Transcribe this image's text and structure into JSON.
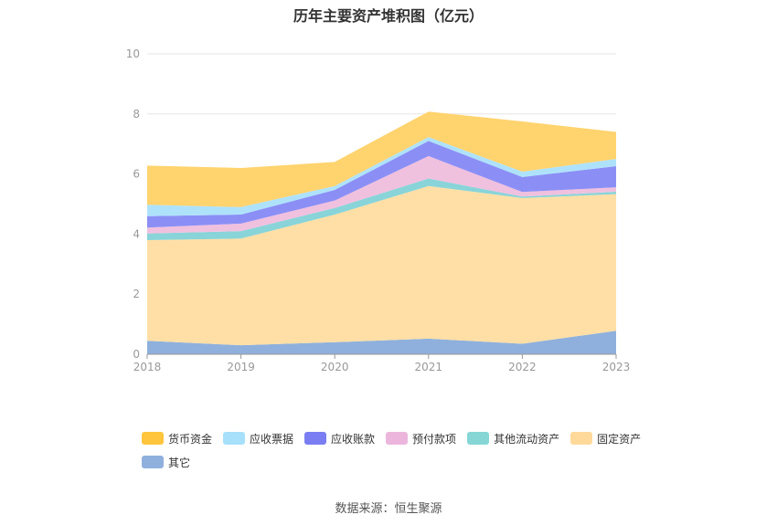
{
  "chart_data": {
    "type": "area",
    "title": "历年主要资产堆积图（亿元）",
    "categories": [
      "2018",
      "2019",
      "2020",
      "2021",
      "2022",
      "2023"
    ],
    "ylim": [
      0,
      10
    ],
    "yticks": [
      "0",
      "2",
      "4",
      "6",
      "8",
      "10"
    ],
    "series": [
      {
        "name": "其它",
        "color": "#8fb0dc",
        "values": [
          0.45,
          0.3,
          0.4,
          0.52,
          0.35,
          0.78
        ]
      },
      {
        "name": "固定资产",
        "color": "#ffdfa6",
        "values": [
          3.35,
          3.55,
          4.25,
          5.08,
          4.85,
          4.55
        ]
      },
      {
        "name": "其他流动资产",
        "color": "#89d4d8",
        "values": [
          0.22,
          0.25,
          0.22,
          0.25,
          0.05,
          0.08
        ]
      },
      {
        "name": "预付款项",
        "color": "#f0c0df",
        "values": [
          0.2,
          0.25,
          0.25,
          0.75,
          0.15,
          0.15
        ]
      },
      {
        "name": "应收账款",
        "color": "#8b8ff5",
        "values": [
          0.38,
          0.3,
          0.35,
          0.5,
          0.5,
          0.7
        ]
      },
      {
        "name": "应收票据",
        "color": "#aee2fb",
        "values": [
          0.38,
          0.25,
          0.13,
          0.13,
          0.18,
          0.24
        ]
      },
      {
        "name": "货币资金",
        "color": "#ffd36e",
        "values": [
          1.3,
          1.3,
          0.8,
          0.85,
          1.67,
          0.9
        ]
      }
    ],
    "legend_order": [
      "货币资金",
      "应收票据",
      "应收账款",
      "预付款项",
      "其他流动资产",
      "固定资产",
      "其它"
    ],
    "legend_colors": {
      "货币资金": "#ffc53d",
      "应收票据": "#a6e0fb",
      "应收账款": "#7a7ef2",
      "预付款项": "#ecb6dc",
      "其他流动资产": "#86d6d6",
      "固定资产": "#ffd99a",
      "其它": "#8fb0dc"
    },
    "source": "数据来源：恒生聚源"
  }
}
